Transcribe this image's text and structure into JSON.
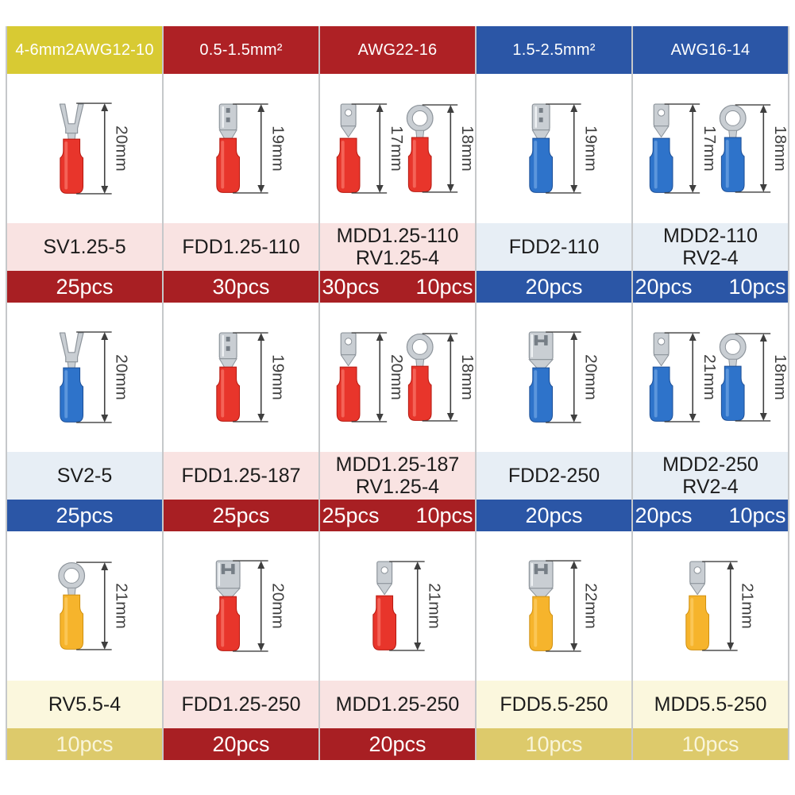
{
  "palette": {
    "page_bg": "#ffffff",
    "divider": "#c6c8ca",
    "header_fg": "#ffffff",
    "label_fg": "#1c1c1c",
    "metal_base": "#c9ced3",
    "metal_dark": "#8d949b",
    "metal_light": "#eff2f4",
    "slot_dark": "#767e86",
    "arrow_color": "#3f3f3f",
    "dim_text_color": "#3f3f3f",
    "sleeve": {
      "red": {
        "base": "#e8352b",
        "dark": "#b5170f",
        "light": "#ff9184"
      },
      "blue": {
        "base": "#2e73ca",
        "dark": "#1c4f97",
        "light": "#8ab9ed"
      },
      "yellow": {
        "base": "#f6b42c",
        "dark": "#cf8f0e",
        "light": "#ffd87e"
      }
    }
  },
  "headers": [
    {
      "label": "4-6mm2AWG12-10",
      "bg": "#d8ca33"
    },
    {
      "label": "0.5-1.5mm²",
      "bg": "#ae2125"
    },
    {
      "label": "AWG22-16",
      "bg": "#ae2125"
    },
    {
      "label": "1.5-2.5mm²",
      "bg": "#2b56a6"
    },
    {
      "label": "AWG16-14",
      "bg": "#2b56a6"
    }
  ],
  "rows": [
    [
      {
        "terminals": [
          {
            "type": "fork",
            "color": "red",
            "dim": "20mm"
          }
        ],
        "label_lines": [
          "SV1.25-5"
        ],
        "label_bg": "#f9e3e2",
        "counts": [
          "25pcs"
        ],
        "count_bg": "#a81f23",
        "count_fg": "#ffffff"
      },
      {
        "terminals": [
          {
            "type": "female",
            "color": "red",
            "dim": "19mm"
          }
        ],
        "label_lines": [
          "FDD1.25-110"
        ],
        "label_bg": "#f9e3e2",
        "counts": [
          "30pcs"
        ],
        "count_bg": "#a81f23",
        "count_fg": "#ffffff"
      },
      {
        "terminals": [
          {
            "type": "male",
            "color": "red",
            "dim": "17mm"
          },
          {
            "type": "ring",
            "color": "red",
            "dim": "18mm"
          }
        ],
        "label_lines": [
          "MDD1.25-110",
          "RV1.25-4"
        ],
        "label_bg": "#f9e3e2",
        "counts": [
          "30pcs",
          "10pcs"
        ],
        "count_bg": "#a81f23",
        "count_fg": "#ffffff"
      },
      {
        "terminals": [
          {
            "type": "female",
            "color": "blue",
            "dim": "19mm"
          }
        ],
        "label_lines": [
          "FDD2-110"
        ],
        "label_bg": "#e7eef5",
        "counts": [
          "20pcs"
        ],
        "count_bg": "#2b56a6",
        "count_fg": "#ffffff"
      },
      {
        "terminals": [
          {
            "type": "male",
            "color": "blue",
            "dim": "17mm"
          },
          {
            "type": "ring",
            "color": "blue",
            "dim": "18mm"
          }
        ],
        "label_lines": [
          "MDD2-110",
          "RV2-4"
        ],
        "label_bg": "#e7eef5",
        "counts": [
          "20pcs",
          "10pcs"
        ],
        "count_bg": "#2b56a6",
        "count_fg": "#ffffff"
      }
    ],
    [
      {
        "terminals": [
          {
            "type": "fork",
            "color": "blue",
            "dim": "20mm"
          }
        ],
        "label_lines": [
          "SV2-5"
        ],
        "label_bg": "#e7eef5",
        "counts": [
          "25pcs"
        ],
        "count_bg": "#2b56a6",
        "count_fg": "#ffffff"
      },
      {
        "terminals": [
          {
            "type": "female",
            "color": "red",
            "dim": "19mm"
          }
        ],
        "label_lines": [
          "FDD1.25-187"
        ],
        "label_bg": "#f9e3e2",
        "counts": [
          "25pcs"
        ],
        "count_bg": "#a81f23",
        "count_fg": "#ffffff"
      },
      {
        "terminals": [
          {
            "type": "male",
            "color": "red",
            "dim": "20mm"
          },
          {
            "type": "ring",
            "color": "red",
            "dim": "18mm"
          }
        ],
        "label_lines": [
          "MDD1.25-187",
          "RV1.25-4"
        ],
        "label_bg": "#f9e3e2",
        "counts": [
          "25pcs",
          "10pcs"
        ],
        "count_bg": "#a81f23",
        "count_fg": "#ffffff"
      },
      {
        "terminals": [
          {
            "type": "female_large",
            "color": "blue",
            "dim": "20mm"
          }
        ],
        "label_lines": [
          "FDD2-250"
        ],
        "label_bg": "#e7eef5",
        "counts": [
          "20pcs"
        ],
        "count_bg": "#2b56a6",
        "count_fg": "#ffffff"
      },
      {
        "terminals": [
          {
            "type": "male",
            "color": "blue",
            "dim": "21mm"
          },
          {
            "type": "ring",
            "color": "blue",
            "dim": "18mm"
          }
        ],
        "label_lines": [
          "MDD2-250",
          "RV2-4"
        ],
        "label_bg": "#e7eef5",
        "counts": [
          "20pcs",
          "10pcs"
        ],
        "count_bg": "#2b56a6",
        "count_fg": "#ffffff"
      }
    ],
    [
      {
        "terminals": [
          {
            "type": "ring",
            "color": "yellow",
            "dim": "21mm"
          }
        ],
        "label_lines": [
          "RV5.5-4"
        ],
        "label_bg": "#fbf7dd",
        "counts": [
          "10pcs"
        ],
        "count_bg": "#ddca6b",
        "count_fg": "#f9f5da"
      },
      {
        "terminals": [
          {
            "type": "female_large",
            "color": "red",
            "dim": "20mm"
          }
        ],
        "label_lines": [
          "FDD1.25-250"
        ],
        "label_bg": "#f9e3e2",
        "counts": [
          "20pcs"
        ],
        "count_bg": "#a81f23",
        "count_fg": "#ffffff"
      },
      {
        "terminals": [
          {
            "type": "male",
            "color": "red",
            "dim": "21mm"
          }
        ],
        "label_lines": [
          "MDD1.25-250"
        ],
        "label_bg": "#f9e3e2",
        "counts": [
          "20pcs"
        ],
        "count_bg": "#a81f23",
        "count_fg": "#ffffff"
      },
      {
        "terminals": [
          {
            "type": "female_large",
            "color": "yellow",
            "dim": "22mm"
          }
        ],
        "label_lines": [
          "FDD5.5-250"
        ],
        "label_bg": "#fbf7dd",
        "counts": [
          "10pcs"
        ],
        "count_bg": "#ddca6b",
        "count_fg": "#f9f5da"
      },
      {
        "terminals": [
          {
            "type": "male",
            "color": "yellow",
            "dim": "21mm"
          }
        ],
        "label_lines": [
          "MDD5.5-250"
        ],
        "label_bg": "#fbf7dd",
        "counts": [
          "10pcs"
        ],
        "count_bg": "#ddca6b",
        "count_fg": "#f9f5da"
      }
    ]
  ]
}
